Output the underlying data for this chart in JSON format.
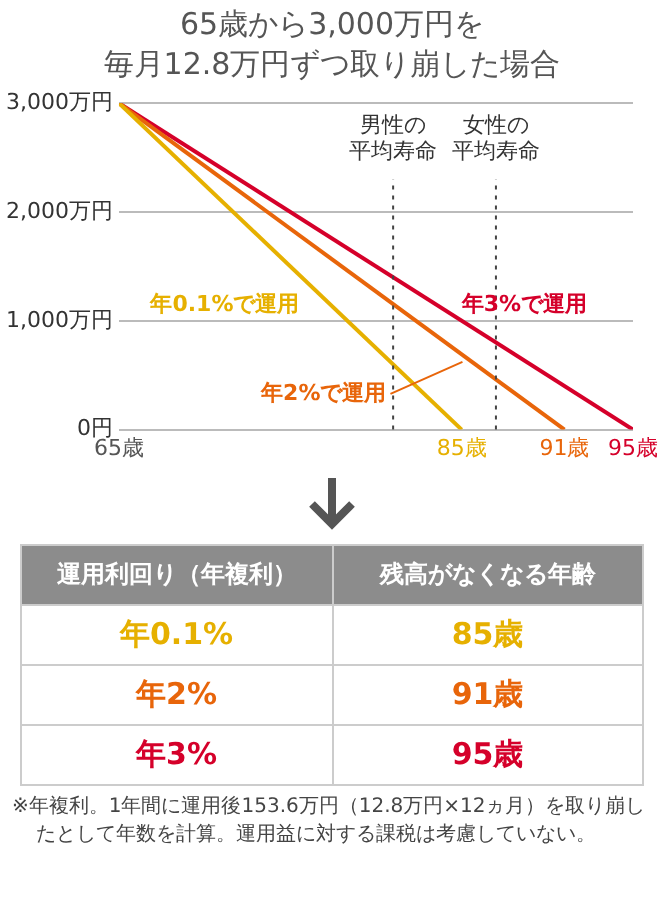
{
  "chart_data": [
    {
      "type": "line",
      "title": "65歳から3,000万円を",
      "subtitle": "毎月12.8万円ずつ取り崩した場合",
      "xlim": [
        65,
        95
      ],
      "xticks": [
        {
          "value": 65,
          "label": "65歳"
        },
        {
          "value": 85,
          "label": "85歳"
        },
        {
          "value": 91,
          "label": "91歳"
        },
        {
          "value": 95,
          "label": "95歳"
        }
      ],
      "ylim": [
        0,
        3000
      ],
      "yticks": [
        {
          "value": 0,
          "label": "0円"
        },
        {
          "value": 1000,
          "label": "1,000万円"
        },
        {
          "value": 2000,
          "label": "2,000万円"
        },
        {
          "value": 3000,
          "label": "3,000万円"
        }
      ],
      "grid": "y",
      "line_style": "solid",
      "marker": "none",
      "series": [
        {
          "name": "年0.1%で運用",
          "color": "#e6b000",
          "x": [
            65,
            85
          ],
          "values": [
            3000,
            0
          ]
        },
        {
          "name": "年2%で運用",
          "color": "#e8650a",
          "x": [
            65,
            91
          ],
          "values": [
            3000,
            0
          ]
        },
        {
          "name": "年3%で運用",
          "color": "#d5002a",
          "x": [
            65,
            95
          ],
          "values": [
            3000,
            0
          ]
        }
      ],
      "ref_lines": [
        {
          "axis": "x",
          "value": 81,
          "label": "男性の平均寿命",
          "line_style": "dotted",
          "color": "#444444"
        },
        {
          "axis": "x",
          "value": 87,
          "label": "女性の平均寿命",
          "line_style": "dotted",
          "color": "#444444"
        }
      ]
    },
    {
      "type": "other",
      "annotations": [
        "運用利回り（年複利）",
        "残高がなくなる年齢",
        "年0.1%",
        "85歳",
        "年2%",
        "91歳",
        "年3%",
        "95歳",
        "※年複利。1年間に運用後153.6万円（12.8万円×12ヵ月）を取り崩したとして年数を計算。運用益に対する課税は考慮していない。"
      ]
    }
  ]
}
